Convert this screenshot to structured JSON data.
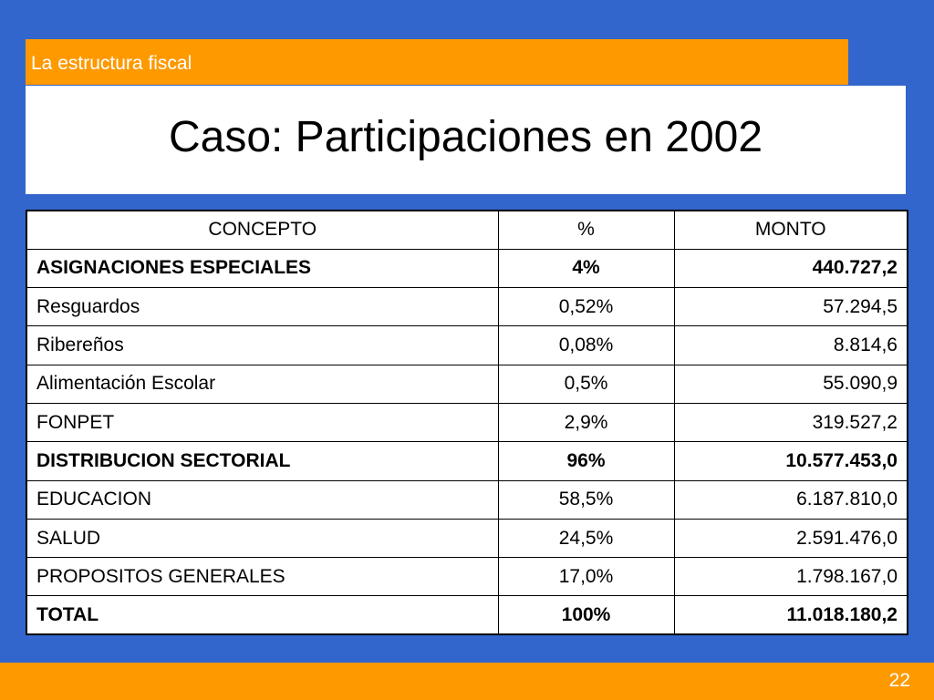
{
  "section": {
    "label": "La estructura fiscal"
  },
  "title": "Caso: Participaciones en 2002",
  "table": {
    "headers": [
      "CONCEPTO",
      "%",
      "MONTO"
    ],
    "rows": [
      {
        "concept": "ASIGNACIONES ESPECIALES",
        "pct": "4%",
        "amount": "440.727,2",
        "bold": true
      },
      {
        "concept": "Resguardos",
        "pct": "0,52%",
        "amount": "57.294,5",
        "bold": false
      },
      {
        "concept": "Ribereños",
        "pct": "0,08%",
        "amount": "8.814,6",
        "bold": false
      },
      {
        "concept": "Alimentación Escolar",
        "pct": "0,5%",
        "amount": "55.090,9",
        "bold": false
      },
      {
        "concept": "FONPET",
        "pct": "2,9%",
        "amount": "319.527,2",
        "bold": false
      },
      {
        "concept": "DISTRIBUCION SECTORIAL",
        "pct": "96%",
        "amount": "10.577.453,0",
        "bold": true
      },
      {
        "concept": "EDUCACION",
        "pct": "58,5%",
        "amount": "6.187.810,0",
        "bold": false
      },
      {
        "concept": "SALUD",
        "pct": "24,5%",
        "amount": "2.591.476,0",
        "bold": false
      },
      {
        "concept": "PROPOSITOS GENERALES",
        "pct": "17,0%",
        "amount": "1.798.167,0",
        "bold": false
      },
      {
        "concept": "TOTAL",
        "pct": "100%",
        "amount": "11.018.180,2",
        "bold": true
      }
    ]
  },
  "footer": {
    "page_number": "22"
  },
  "colors": {
    "background": "#3366CC",
    "accent": "#FF9900",
    "panel": "#FFFFFF"
  }
}
